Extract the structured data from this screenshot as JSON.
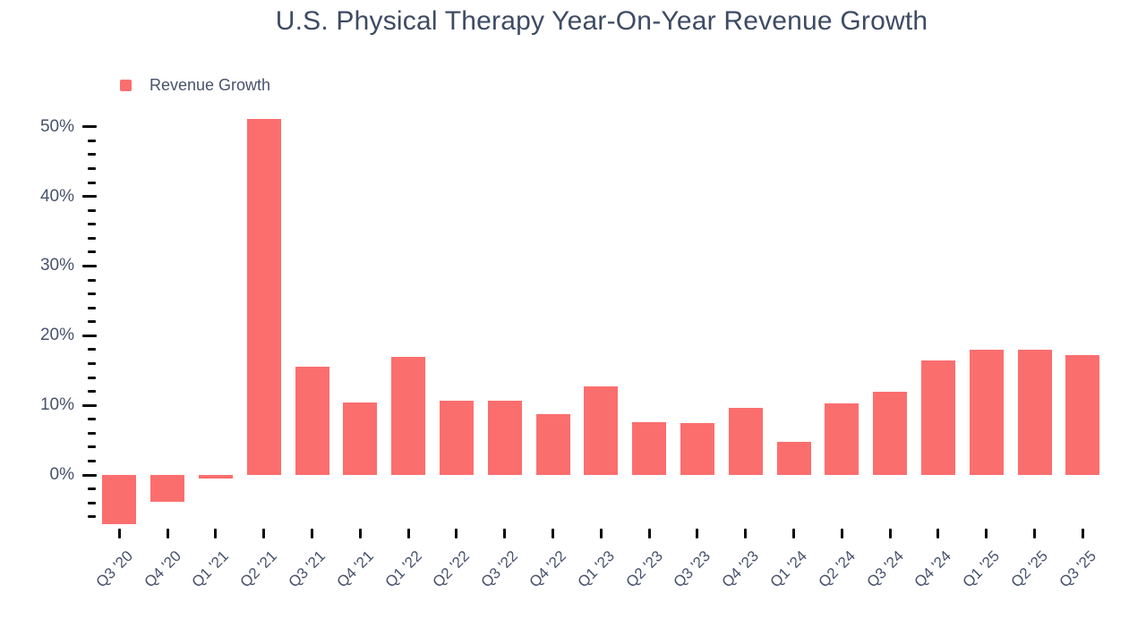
{
  "chart": {
    "title": "U.S. Physical Therapy Year-On-Year Revenue Growth",
    "legend": {
      "label": "Revenue Growth"
    }
  },
  "chart_data": {
    "type": "bar",
    "title": "U.S. Physical Therapy Year-On-Year Revenue Growth",
    "categories": [
      "Q3 '20",
      "Q4 '20",
      "Q1 '21",
      "Q2 '21",
      "Q3 '21",
      "Q4 '21",
      "Q1 '22",
      "Q2 '22",
      "Q3 '22",
      "Q4 '22",
      "Q1 '23",
      "Q2 '23",
      "Q3 '23",
      "Q4 '23",
      "Q1 '24",
      "Q2 '24",
      "Q3 '24",
      "Q4 '24",
      "Q1 '25",
      "Q2 '25",
      "Q3 '25"
    ],
    "series": [
      {
        "name": "Revenue Growth",
        "values": [
          -7.1,
          -3.9,
          -0.5,
          51.1,
          15.5,
          10.4,
          17.0,
          10.7,
          10.7,
          8.8,
          12.7,
          7.6,
          7.4,
          9.6,
          4.7,
          10.3,
          11.9,
          16.4,
          18.0,
          18.0,
          17.2
        ]
      }
    ],
    "value_unit": "%",
    "xlabel": "",
    "ylabel": "",
    "y_axis": {
      "major_ticks": [
        0,
        10,
        20,
        30,
        40,
        50
      ],
      "major_tick_labels": [
        "0%",
        "10%",
        "20%",
        "30%",
        "40%",
        "50%"
      ],
      "minor_tick_step": 2,
      "minor_tick_min": -6,
      "minor_tick_max": 48,
      "min": -7.5,
      "max": 52
    },
    "grid": false,
    "axis_lines": false,
    "legend_position": "top-left",
    "colors": {
      "bar": "#FB6E6E",
      "text": "#47526B",
      "title_text": "#3E4B63",
      "tick": "#0B0B0B",
      "background": "#FFFFFF"
    }
  }
}
